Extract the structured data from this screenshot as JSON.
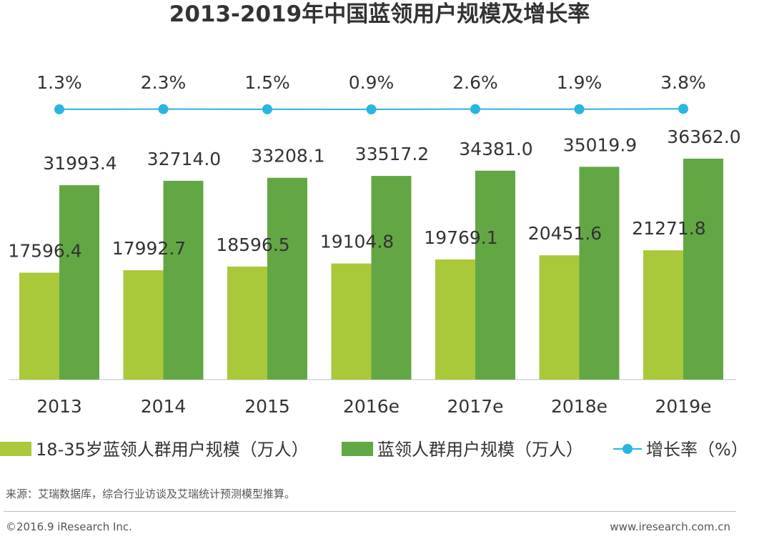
{
  "chart_data": {
    "type": "bar",
    "title": "2013-2019年中国蓝领用户规模及增长率",
    "categories": [
      "2013",
      "2014",
      "2015",
      "2016e",
      "2017e",
      "2018e",
      "2019e"
    ],
    "series": [
      {
        "name": "18-35岁蓝领人群用户规模（万人）",
        "type": "bar",
        "values": [
          17596.4,
          17992.7,
          18596.5,
          19104.8,
          19769.1,
          20451.6,
          21271.8
        ],
        "labels": [
          "17596.4",
          "17992.7",
          "18596.5",
          "19104.8",
          "19769.1",
          "20451.6",
          "21271.8"
        ],
        "color": "#a9c83a"
      },
      {
        "name": "蓝领人群用户规模（万人）",
        "type": "bar",
        "values": [
          31993.4,
          32714.0,
          33208.1,
          33517.2,
          34381.0,
          35019.9,
          36362.0
        ],
        "labels": [
          "31993.4",
          "32714.0",
          "33208.1",
          "33517.2",
          "34381.0",
          "35019.9",
          "36362.0"
        ],
        "color": "#62a744"
      },
      {
        "name": "增长率（%）",
        "type": "line",
        "values": [
          1.3,
          2.3,
          1.5,
          0.9,
          2.6,
          1.9,
          3.8
        ],
        "labels": [
          "1.3%",
          "2.3%",
          "1.5%",
          "0.9%",
          "2.6%",
          "1.9%",
          "3.8%"
        ],
        "color": "#29b5e0"
      }
    ],
    "legend_position": "bottom",
    "grid": false
  },
  "footer": {
    "source": "来源：艾瑞数据库，综合行业访谈及艾瑞统计预测模型推算。",
    "copyright": "©2016.9 iResearch Inc.",
    "website": "www.iresearch.com.cn"
  }
}
